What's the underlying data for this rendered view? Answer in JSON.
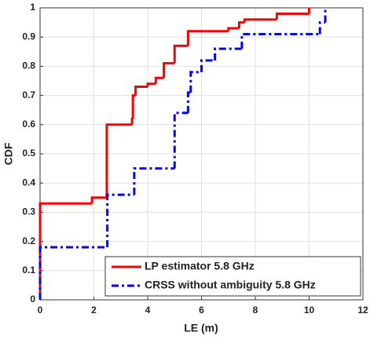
{
  "chart_data": {
    "type": "step",
    "xlabel": "LE (m)",
    "ylabel": "CDF",
    "xlim": [
      0,
      12
    ],
    "xticks": [
      0,
      2,
      4,
      6,
      8,
      10,
      12
    ],
    "ylim": [
      0,
      1
    ],
    "yticks": [
      0,
      0.1,
      0.2,
      0.3,
      0.4,
      0.5,
      0.6,
      0.7,
      0.8,
      0.9,
      1
    ],
    "grid": true,
    "legend": "lower right",
    "series": [
      {
        "name": "LP estimator 5.8 GHz",
        "color": "#ff0000",
        "linestyle": "solid",
        "x": [
          0,
          0,
          1.93,
          2.48,
          3.42,
          3.45,
          3.55,
          4.0,
          4.3,
          4.6,
          5.0,
          5.5,
          7.0,
          7.4,
          7.6,
          8.8,
          10.0
        ],
        "values": [
          0,
          0.33,
          0.35,
          0.6,
          0.62,
          0.7,
          0.73,
          0.74,
          0.76,
          0.81,
          0.87,
          0.92,
          0.93,
          0.95,
          0.96,
          0.98,
          1.0
        ]
      },
      {
        "name": "CRSS without ambiguity 5.8 GHz",
        "color": "#0000ff",
        "linestyle": "dash-dot",
        "x": [
          0,
          0,
          2.5,
          3.5,
          5.0,
          5.5,
          5.6,
          6.0,
          6.5,
          7.5,
          10.4,
          10.6
        ],
        "values": [
          0,
          0.18,
          0.36,
          0.45,
          0.64,
          0.71,
          0.78,
          0.82,
          0.86,
          0.91,
          0.95,
          1.0
        ]
      }
    ]
  }
}
